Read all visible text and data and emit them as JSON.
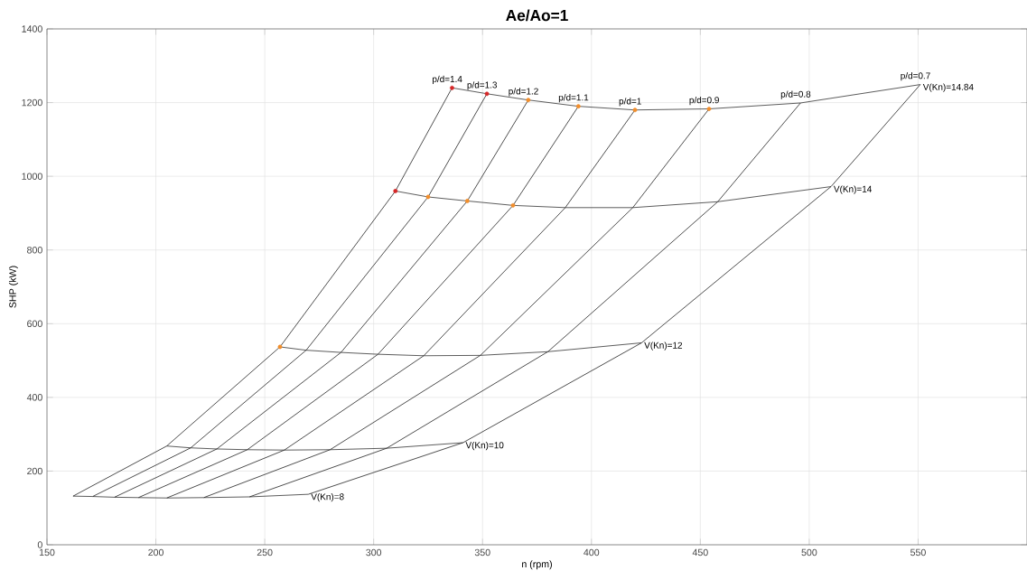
{
  "chart_data": {
    "type": "line",
    "title": "Ae/Ao=1",
    "xlabel": "n (rpm)",
    "ylabel": "SHP (kW)",
    "xlim": [
      150,
      600
    ],
    "ylim": [
      0,
      1400
    ],
    "xticks": [
      150,
      200,
      250,
      300,
      350,
      400,
      450,
      500,
      550
    ],
    "yticks": [
      0,
      200,
      400,
      600,
      800,
      1000,
      1200,
      1400
    ],
    "grid": true,
    "series": [
      {
        "name": "V(Kn)=8",
        "color": "#333333",
        "x": [
          162,
          171,
          181,
          192,
          205,
          222,
          243,
          270
        ],
        "values": [
          132,
          131,
          129,
          128,
          127,
          128,
          130,
          137
        ]
      },
      {
        "name": "V(Kn)=10",
        "color": "#333333",
        "x": [
          205,
          216,
          228,
          242,
          259,
          280,
          306,
          341
        ],
        "values": [
          268,
          263,
          260,
          258,
          257,
          258,
          262,
          277
        ]
      },
      {
        "name": "V(Kn)=12",
        "color": "#333333",
        "x": [
          257,
          269,
          285,
          302,
          323,
          349,
          380,
          423
        ],
        "values": [
          537,
          528,
          522,
          517,
          513,
          514,
          524,
          548
        ]
      },
      {
        "name": "V(Kn)=14",
        "color": "#333333",
        "x": [
          310,
          325,
          343,
          364,
          388,
          419,
          458,
          510
        ],
        "values": [
          960,
          944,
          933,
          921,
          915,
          915,
          931,
          972
        ]
      },
      {
        "name": "V(Kn)=14.84",
        "color": "#333333",
        "x": [
          336,
          352,
          371,
          394,
          420,
          454,
          496,
          551
        ],
        "values": [
          1240,
          1224,
          1207,
          1190,
          1180,
          1183,
          1199,
          1249
        ]
      },
      {
        "name": "p/d=1.4",
        "color": "#222222",
        "x": [
          162,
          205,
          257,
          310,
          336
        ],
        "values": [
          132,
          268,
          537,
          960,
          1240
        ]
      },
      {
        "name": "p/d=1.3",
        "color": "#222222",
        "x": [
          171,
          216,
          269,
          325,
          352
        ],
        "values": [
          131,
          263,
          528,
          944,
          1224
        ]
      },
      {
        "name": "p/d=1.2",
        "color": "#222222",
        "x": [
          181,
          228,
          285,
          343,
          371
        ],
        "values": [
          129,
          260,
          522,
          933,
          1207
        ]
      },
      {
        "name": "p/d=1.1",
        "color": "#222222",
        "x": [
          192,
          242,
          302,
          364,
          394
        ],
        "values": [
          128,
          258,
          517,
          921,
          1190
        ]
      },
      {
        "name": "p/d=1",
        "color": "#222222",
        "x": [
          205,
          259,
          323,
          388,
          420
        ],
        "values": [
          127,
          257,
          513,
          915,
          1180
        ]
      },
      {
        "name": "p/d=0.9",
        "color": "#222222",
        "x": [
          222,
          280,
          349,
          419,
          454
        ],
        "values": [
          128,
          258,
          514,
          915,
          1183
        ]
      },
      {
        "name": "p/d=0.8",
        "color": "#222222",
        "x": [
          243,
          306,
          380,
          458,
          496
        ],
        "values": [
          130,
          262,
          524,
          931,
          1199
        ]
      },
      {
        "name": "p/d=0.7",
        "color": "#222222",
        "x": [
          270,
          341,
          423,
          510,
          551
        ],
        "values": [
          137,
          277,
          548,
          972,
          1249
        ]
      },
      {
        "type": "scatter",
        "marker": "circle",
        "color": "#d62728",
        "x": [
          336,
          352,
          310
        ],
        "values": [
          1240,
          1224,
          960
        ]
      },
      {
        "type": "scatter",
        "marker": "circle",
        "color": "#f28e2b",
        "x": [
          371,
          394,
          420,
          454,
          325,
          343,
          364,
          257
        ],
        "values": [
          1207,
          1190,
          1180,
          1183,
          944,
          933,
          921,
          537
        ]
      }
    ]
  }
}
